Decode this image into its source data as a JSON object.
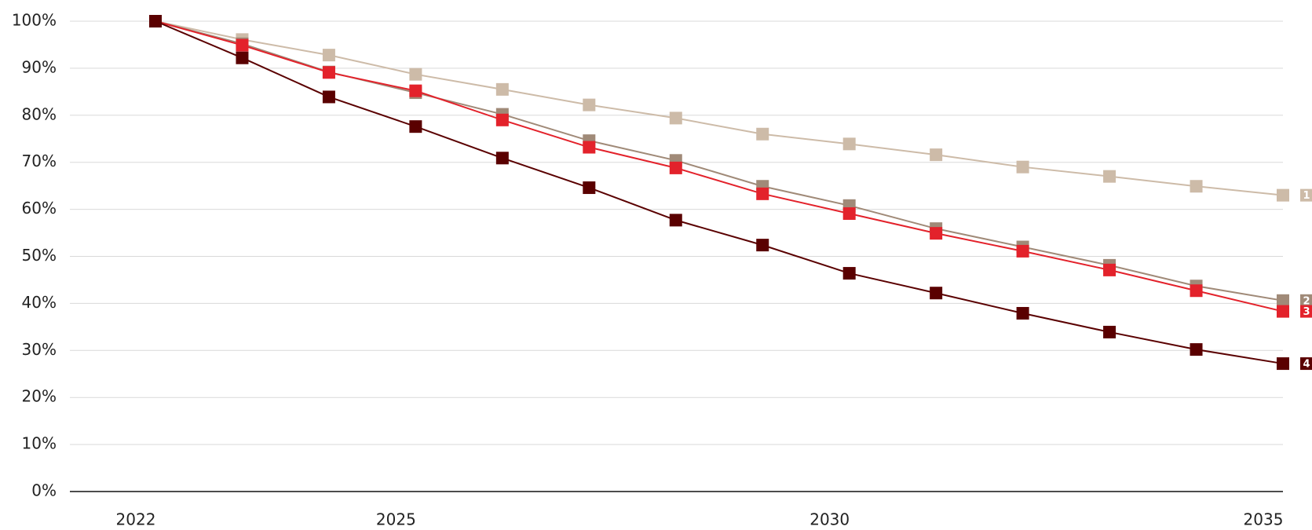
{
  "chart_data": {
    "type": "line",
    "categories": [
      "2022",
      null,
      null,
      "2025",
      null,
      null,
      null,
      null,
      "2030",
      null,
      null,
      null,
      null,
      "2035"
    ],
    "ylim": [
      0,
      100
    ],
    "yticks": [
      {
        "value": 0,
        "label": "0%"
      },
      {
        "value": 10,
        "label": "10%"
      },
      {
        "value": 20,
        "label": "20%"
      },
      {
        "value": 30,
        "label": "30%"
      },
      {
        "value": 40,
        "label": "40%"
      },
      {
        "value": 50,
        "label": "50%"
      },
      {
        "value": 60,
        "label": "60%"
      },
      {
        "value": 70,
        "label": "70%"
      },
      {
        "value": 80,
        "label": "80%"
      },
      {
        "value": 90,
        "label": "90%"
      },
      {
        "value": 100,
        "label": "100%"
      }
    ],
    "grid": true,
    "series": [
      {
        "name": "1",
        "color": "#cdbba8",
        "values": [
          100,
          96.1,
          92.8,
          88.7,
          85.5,
          82.2,
          79.4,
          76.0,
          73.9,
          71.6,
          69.0,
          67.0,
          64.9,
          63.0
        ]
      },
      {
        "name": "2",
        "color": "#a08a78",
        "values": [
          100,
          95.2,
          89.2,
          84.8,
          80.2,
          74.6,
          70.4,
          64.9,
          60.8,
          55.9,
          52.0,
          48.1,
          43.7,
          40.6
        ]
      },
      {
        "name": "3",
        "color": "#e3222b",
        "values": [
          100,
          94.9,
          89.1,
          85.2,
          79.0,
          73.2,
          68.8,
          63.3,
          59.1,
          54.9,
          51.1,
          47.1,
          42.7,
          38.3
        ]
      },
      {
        "name": "4",
        "color": "#5a0000",
        "values": [
          100,
          92.2,
          83.9,
          77.6,
          70.9,
          64.6,
          57.7,
          52.4,
          46.4,
          42.2,
          37.9,
          33.9,
          30.2,
          27.2
        ]
      }
    ]
  }
}
